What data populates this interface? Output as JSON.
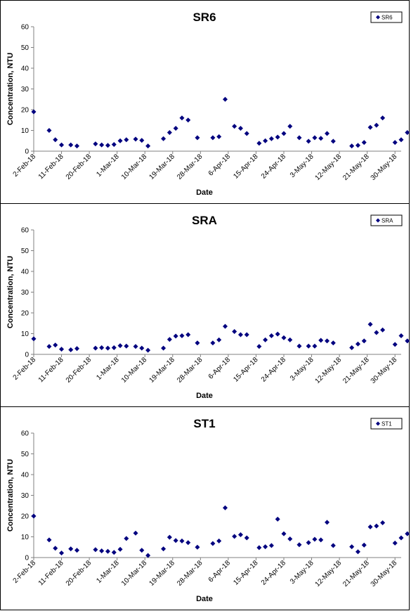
{
  "colors": {
    "marker": "#00007f",
    "axis": "#808080",
    "background": "#ffffff"
  },
  "chart_data": [
    {
      "type": "scatter",
      "title": "SR6",
      "xlabel": "Date",
      "ylabel": "Concentration, NTU",
      "ylim": [
        0,
        60
      ],
      "yticks": [
        0,
        10,
        20,
        30,
        40,
        50,
        60
      ],
      "xlim": [
        "2018-02-02",
        "2018-06-01"
      ],
      "xtick_labels": [
        "2-Feb-18",
        "11-Feb-18",
        "20-Feb-18",
        "1-Mar-18",
        "10-Mar-18",
        "19-Mar-18",
        "28-Mar-18",
        "6-Apr-18",
        "15-Apr-18",
        "24-Apr-18",
        "3-May-18",
        "12-May-18",
        "21-May-18",
        "30-May-18"
      ],
      "legend": "top-right",
      "grid": false,
      "series": [
        {
          "name": "SR6",
          "points": [
            [
              "2018-02-02",
              19
            ],
            [
              "2018-02-07",
              10
            ],
            [
              "2018-02-09",
              5.5
            ],
            [
              "2018-02-11",
              3
            ],
            [
              "2018-02-14",
              3
            ],
            [
              "2018-02-16",
              2.5
            ],
            [
              "2018-02-22",
              3.5
            ],
            [
              "2018-02-24",
              3
            ],
            [
              "2018-02-26",
              2.8
            ],
            [
              "2018-02-28",
              3.2
            ],
            [
              "2018-03-02",
              5
            ],
            [
              "2018-03-04",
              5.5
            ],
            [
              "2018-03-07",
              5.8
            ],
            [
              "2018-03-09",
              5.2
            ],
            [
              "2018-03-11",
              2.5
            ],
            [
              "2018-03-16",
              6
            ],
            [
              "2018-03-18",
              9
            ],
            [
              "2018-03-20",
              11
            ],
            [
              "2018-03-22",
              16
            ],
            [
              "2018-03-24",
              15
            ],
            [
              "2018-03-27",
              6.5
            ],
            [
              "2018-04-01",
              6.5
            ],
            [
              "2018-04-03",
              7
            ],
            [
              "2018-04-05",
              25
            ],
            [
              "2018-04-08",
              12
            ],
            [
              "2018-04-10",
              11
            ],
            [
              "2018-04-12",
              8.5
            ],
            [
              "2018-04-16",
              3.8
            ],
            [
              "2018-04-18",
              5
            ],
            [
              "2018-04-20",
              6
            ],
            [
              "2018-04-22",
              6.8
            ],
            [
              "2018-04-24",
              8.5
            ],
            [
              "2018-04-26",
              12
            ],
            [
              "2018-04-29",
              6.5
            ],
            [
              "2018-05-02",
              4.8
            ],
            [
              "2018-05-04",
              6.5
            ],
            [
              "2018-05-06",
              6.2
            ],
            [
              "2018-05-08",
              8.5
            ],
            [
              "2018-05-10",
              4.8
            ],
            [
              "2018-05-16",
              2.5
            ],
            [
              "2018-05-18",
              2.8
            ],
            [
              "2018-05-20",
              4.2
            ],
            [
              "2018-05-22",
              11.5
            ],
            [
              "2018-05-24",
              12.5
            ],
            [
              "2018-05-26",
              16
            ],
            [
              "2018-05-30",
              4.2
            ],
            [
              "2018-06-01",
              5.5
            ],
            [
              "2018-06-03",
              9
            ],
            [
              "2018-06-05",
              7
            ],
            [
              "2018-06-07",
              5.2
            ]
          ]
        }
      ]
    },
    {
      "type": "scatter",
      "title": "SRA",
      "xlabel": "Date",
      "ylabel": "Concentration, NTU",
      "ylim": [
        0,
        60
      ],
      "yticks": [
        0,
        10,
        20,
        30,
        40,
        50,
        60
      ],
      "xlim": [
        "2018-02-02",
        "2018-06-01"
      ],
      "xtick_labels": [
        "2-Feb-18",
        "11-Feb-18",
        "20-Feb-18",
        "1-Mar-18",
        "10-Mar-18",
        "19-Mar-18",
        "28-Mar-18",
        "6-Apr-18",
        "15-Apr-18",
        "24-Apr-18",
        "3-May-18",
        "12-May-18",
        "21-May-18",
        "30-May-18"
      ],
      "legend": "top-right",
      "grid": false,
      "series": [
        {
          "name": "SRA",
          "points": [
            [
              "2018-02-02",
              7.5
            ],
            [
              "2018-02-07",
              3.8
            ],
            [
              "2018-02-09",
              4.5
            ],
            [
              "2018-02-11",
              2.5
            ],
            [
              "2018-02-14",
              2.2
            ],
            [
              "2018-02-16",
              2.8
            ],
            [
              "2018-02-22",
              3
            ],
            [
              "2018-02-24",
              3.2
            ],
            [
              "2018-02-26",
              3
            ],
            [
              "2018-02-28",
              3.2
            ],
            [
              "2018-03-02",
              4.2
            ],
            [
              "2018-03-04",
              4
            ],
            [
              "2018-03-07",
              3.8
            ],
            [
              "2018-03-09",
              3
            ],
            [
              "2018-03-11",
              2
            ],
            [
              "2018-03-16",
              3
            ],
            [
              "2018-03-18",
              7.2
            ],
            [
              "2018-03-20",
              8.8
            ],
            [
              "2018-03-22",
              9
            ],
            [
              "2018-03-24",
              9.5
            ],
            [
              "2018-03-27",
              5.5
            ],
            [
              "2018-04-01",
              5.5
            ],
            [
              "2018-04-03",
              7
            ],
            [
              "2018-04-05",
              13.5
            ],
            [
              "2018-04-08",
              11
            ],
            [
              "2018-04-10",
              9.5
            ],
            [
              "2018-04-12",
              9.5
            ],
            [
              "2018-04-16",
              3.8
            ],
            [
              "2018-04-18",
              7
            ],
            [
              "2018-04-20",
              9
            ],
            [
              "2018-04-22",
              9.8
            ],
            [
              "2018-04-24",
              8
            ],
            [
              "2018-04-26",
              7
            ],
            [
              "2018-04-29",
              4
            ],
            [
              "2018-05-02",
              4
            ],
            [
              "2018-05-04",
              4
            ],
            [
              "2018-05-06",
              6.8
            ],
            [
              "2018-05-08",
              6.5
            ],
            [
              "2018-05-10",
              5.5
            ],
            [
              "2018-05-16",
              3.2
            ],
            [
              "2018-05-18",
              5
            ],
            [
              "2018-05-20",
              6.5
            ],
            [
              "2018-05-22",
              14.5
            ],
            [
              "2018-05-24",
              10.5
            ],
            [
              "2018-05-26",
              11.8
            ],
            [
              "2018-05-30",
              4.8
            ],
            [
              "2018-06-01",
              9
            ],
            [
              "2018-06-03",
              6.5
            ],
            [
              "2018-06-05",
              11.5
            ],
            [
              "2018-06-07",
              11.2
            ]
          ]
        }
      ]
    },
    {
      "type": "scatter",
      "title": "ST1",
      "xlabel": "Date",
      "ylabel": "Concentration, NTU",
      "ylim": [
        0,
        60
      ],
      "yticks": [
        0,
        10,
        20,
        30,
        40,
        50,
        60
      ],
      "xlim": [
        "2018-02-02",
        "2018-06-01"
      ],
      "xtick_labels": [
        "2-Feb-18",
        "11-Feb-18",
        "20-Feb-18",
        "1-Mar-18",
        "10-Mar-18",
        "19-Mar-18",
        "28-Mar-18",
        "6-Apr-18",
        "15-Apr-18",
        "24-Apr-18",
        "3-May-18",
        "12-May-18",
        "21-May-18",
        "30-May-18"
      ],
      "legend": "top-right",
      "grid": false,
      "series": [
        {
          "name": "ST1",
          "points": [
            [
              "2018-02-02",
              20
            ],
            [
              "2018-02-07",
              8.5
            ],
            [
              "2018-02-09",
              4.5
            ],
            [
              "2018-02-11",
              2.2
            ],
            [
              "2018-02-14",
              4.2
            ],
            [
              "2018-02-16",
              3.5
            ],
            [
              "2018-02-22",
              3.8
            ],
            [
              "2018-02-24",
              3.2
            ],
            [
              "2018-02-26",
              3
            ],
            [
              "2018-02-28",
              2.5
            ],
            [
              "2018-03-02",
              4
            ],
            [
              "2018-03-04",
              9.2
            ],
            [
              "2018-03-07",
              11.8
            ],
            [
              "2018-03-09",
              3.5
            ],
            [
              "2018-03-11",
              1
            ],
            [
              "2018-03-16",
              4.2
            ],
            [
              "2018-03-18",
              9.8
            ],
            [
              "2018-03-20",
              8.2
            ],
            [
              "2018-03-22",
              8
            ],
            [
              "2018-03-24",
              7.2
            ],
            [
              "2018-03-27",
              5
            ],
            [
              "2018-04-01",
              6.8
            ],
            [
              "2018-04-03",
              8
            ],
            [
              "2018-04-05",
              24
            ],
            [
              "2018-04-08",
              10.2
            ],
            [
              "2018-04-10",
              11
            ],
            [
              "2018-04-12",
              9.5
            ],
            [
              "2018-04-16",
              4.8
            ],
            [
              "2018-04-18",
              5.2
            ],
            [
              "2018-04-20",
              5.8
            ],
            [
              "2018-04-22",
              18.5
            ],
            [
              "2018-04-24",
              11.5
            ],
            [
              "2018-04-26",
              9
            ],
            [
              "2018-04-29",
              6.2
            ],
            [
              "2018-05-02",
              7.2
            ],
            [
              "2018-05-04",
              8.8
            ],
            [
              "2018-05-06",
              8.5
            ],
            [
              "2018-05-08",
              17
            ],
            [
              "2018-05-10",
              5.8
            ],
            [
              "2018-05-16",
              5.2
            ],
            [
              "2018-05-18",
              2.8
            ],
            [
              "2018-05-20",
              6
            ],
            [
              "2018-05-22",
              14.8
            ],
            [
              "2018-05-24",
              15.2
            ],
            [
              "2018-05-26",
              16.8
            ],
            [
              "2018-05-30",
              7
            ],
            [
              "2018-06-01",
              9.5
            ],
            [
              "2018-06-03",
              11.5
            ],
            [
              "2018-06-05",
              14.5
            ],
            [
              "2018-06-07",
              12
            ]
          ]
        }
      ]
    }
  ]
}
